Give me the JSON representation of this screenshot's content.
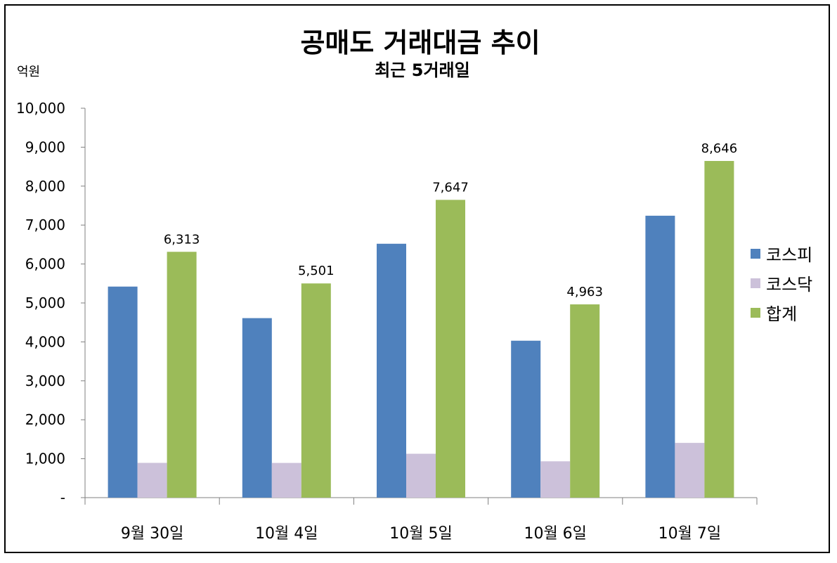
{
  "chart_data": {
    "type": "bar",
    "title": "공매도 거래대금 추이",
    "subtitle": "최근 5거래일",
    "ylabel": "억원",
    "ylim": [
      0,
      10000
    ],
    "yticks": [
      "-",
      "1,000",
      "2,000",
      "3,000",
      "4,000",
      "5,000",
      "6,000",
      "7,000",
      "8,000",
      "9,000",
      "10,000"
    ],
    "categories": [
      "9월 30일",
      "10월 4일",
      "10월 5일",
      "10월 6일",
      "10월 7일"
    ],
    "series": [
      {
        "name": "코스피",
        "color": "#4f81bd",
        "values": [
          5420,
          4610,
          6520,
          4030,
          7240
        ]
      },
      {
        "name": "코스닥",
        "color": "#ccc1da",
        "values": [
          893,
          891,
          1127,
          933,
          1406
        ]
      },
      {
        "name": "합계",
        "color": "#9bbb59",
        "values": [
          6313,
          5501,
          7647,
          4963,
          8646
        ],
        "data_labels": [
          "6,313",
          "5,501",
          "7,647",
          "4,963",
          "8,646"
        ]
      }
    ],
    "legend_position": "right",
    "grid": false
  }
}
